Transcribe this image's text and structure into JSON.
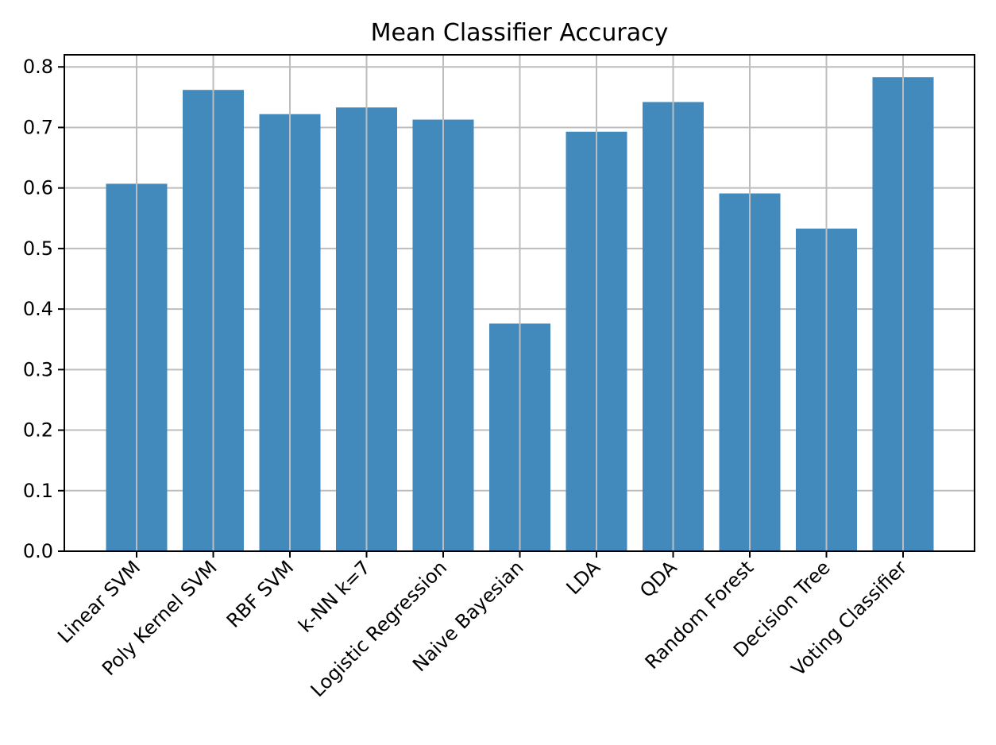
{
  "chart_data": {
    "type": "bar",
    "title": "Mean Classifier Accuracy",
    "xlabel": "",
    "ylabel": "",
    "categories": [
      "Linear SVM",
      "Poly Kernel SVM",
      "RBF SVM",
      "k-NN k=7",
      "Logistic Regression",
      "Naive Bayesian",
      "LDA",
      "QDA",
      "Random Forest",
      "Decision Tree",
      "Voting Classifier"
    ],
    "values": [
      0.607,
      0.762,
      0.722,
      0.733,
      0.713,
      0.376,
      0.693,
      0.742,
      0.591,
      0.533,
      0.783
    ],
    "ylim": [
      0,
      0.82
    ],
    "yticks": [
      "0.0",
      "0.1",
      "0.2",
      "0.3",
      "0.4",
      "0.5",
      "0.6",
      "0.7",
      "0.8"
    ],
    "ytick_values": [
      0,
      0.1,
      0.2,
      0.3,
      0.4,
      0.5,
      0.6,
      0.7,
      0.8
    ],
    "grid": true,
    "colors": {
      "bar": "#438ABC",
      "grid": "#BDBDBD",
      "axis": "#000000"
    }
  }
}
